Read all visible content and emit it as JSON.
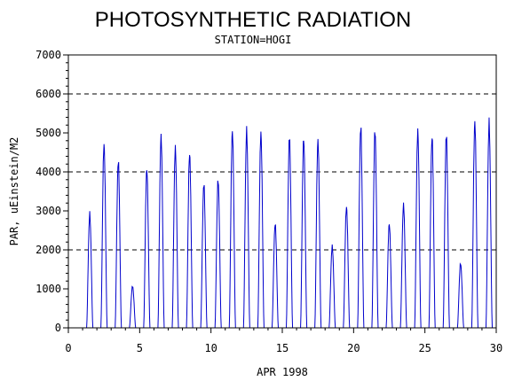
{
  "chart_data": {
    "type": "line",
    "title": "PHOTOSYNTHETIC RADIATION",
    "subtitle": "STATION=HOGI",
    "xlabel": "APR 1998",
    "ylabel": "PAR, uEinstein/M2",
    "xlim": [
      0,
      30
    ],
    "ylim": [
      0,
      7000
    ],
    "x_ticks": [
      0,
      5,
      10,
      15,
      20,
      25,
      30
    ],
    "y_ticks": [
      0,
      1000,
      2000,
      3000,
      4000,
      5000,
      6000,
      7000
    ],
    "reference_lines": [
      2000,
      4000,
      6000
    ],
    "line_color": "#0000cc",
    "series": [
      {
        "daily_peaks": [
          {
            "day": 1,
            "peak": 3000
          },
          {
            "day": 2,
            "peak": 4850
          },
          {
            "day": 3,
            "peak": 4400
          },
          {
            "day": 4,
            "peak": 1100
          },
          {
            "day": 5,
            "peak": 4200
          },
          {
            "day": 6,
            "peak": 5050
          },
          {
            "day": 7,
            "peak": 4750
          },
          {
            "day": 8,
            "peak": 4600
          },
          {
            "day": 9,
            "peak": 3800
          },
          {
            "day": 10,
            "peak": 3900
          },
          {
            "day": 11,
            "peak": 5200
          },
          {
            "day": 12,
            "peak": 5200
          },
          {
            "day": 13,
            "peak": 5150
          },
          {
            "day": 14,
            "peak": 2750
          },
          {
            "day": 15,
            "peak": 5050
          },
          {
            "day": 16,
            "peak": 5000
          },
          {
            "day": 17,
            "peak": 4950
          },
          {
            "day": 18,
            "peak": 2150
          },
          {
            "day": 19,
            "peak": 3200
          },
          {
            "day": 20,
            "peak": 5300
          },
          {
            "day": 21,
            "peak": 5200
          },
          {
            "day": 22,
            "peak": 2750
          },
          {
            "day": 23,
            "peak": 3250
          },
          {
            "day": 24,
            "peak": 5200
          },
          {
            "day": 25,
            "peak": 5050
          },
          {
            "day": 26,
            "peak": 5100
          },
          {
            "day": 27,
            "peak": 1700
          },
          {
            "day": 28,
            "peak": 5450
          },
          {
            "day": 29,
            "peak": 5400
          }
        ]
      }
    ]
  }
}
